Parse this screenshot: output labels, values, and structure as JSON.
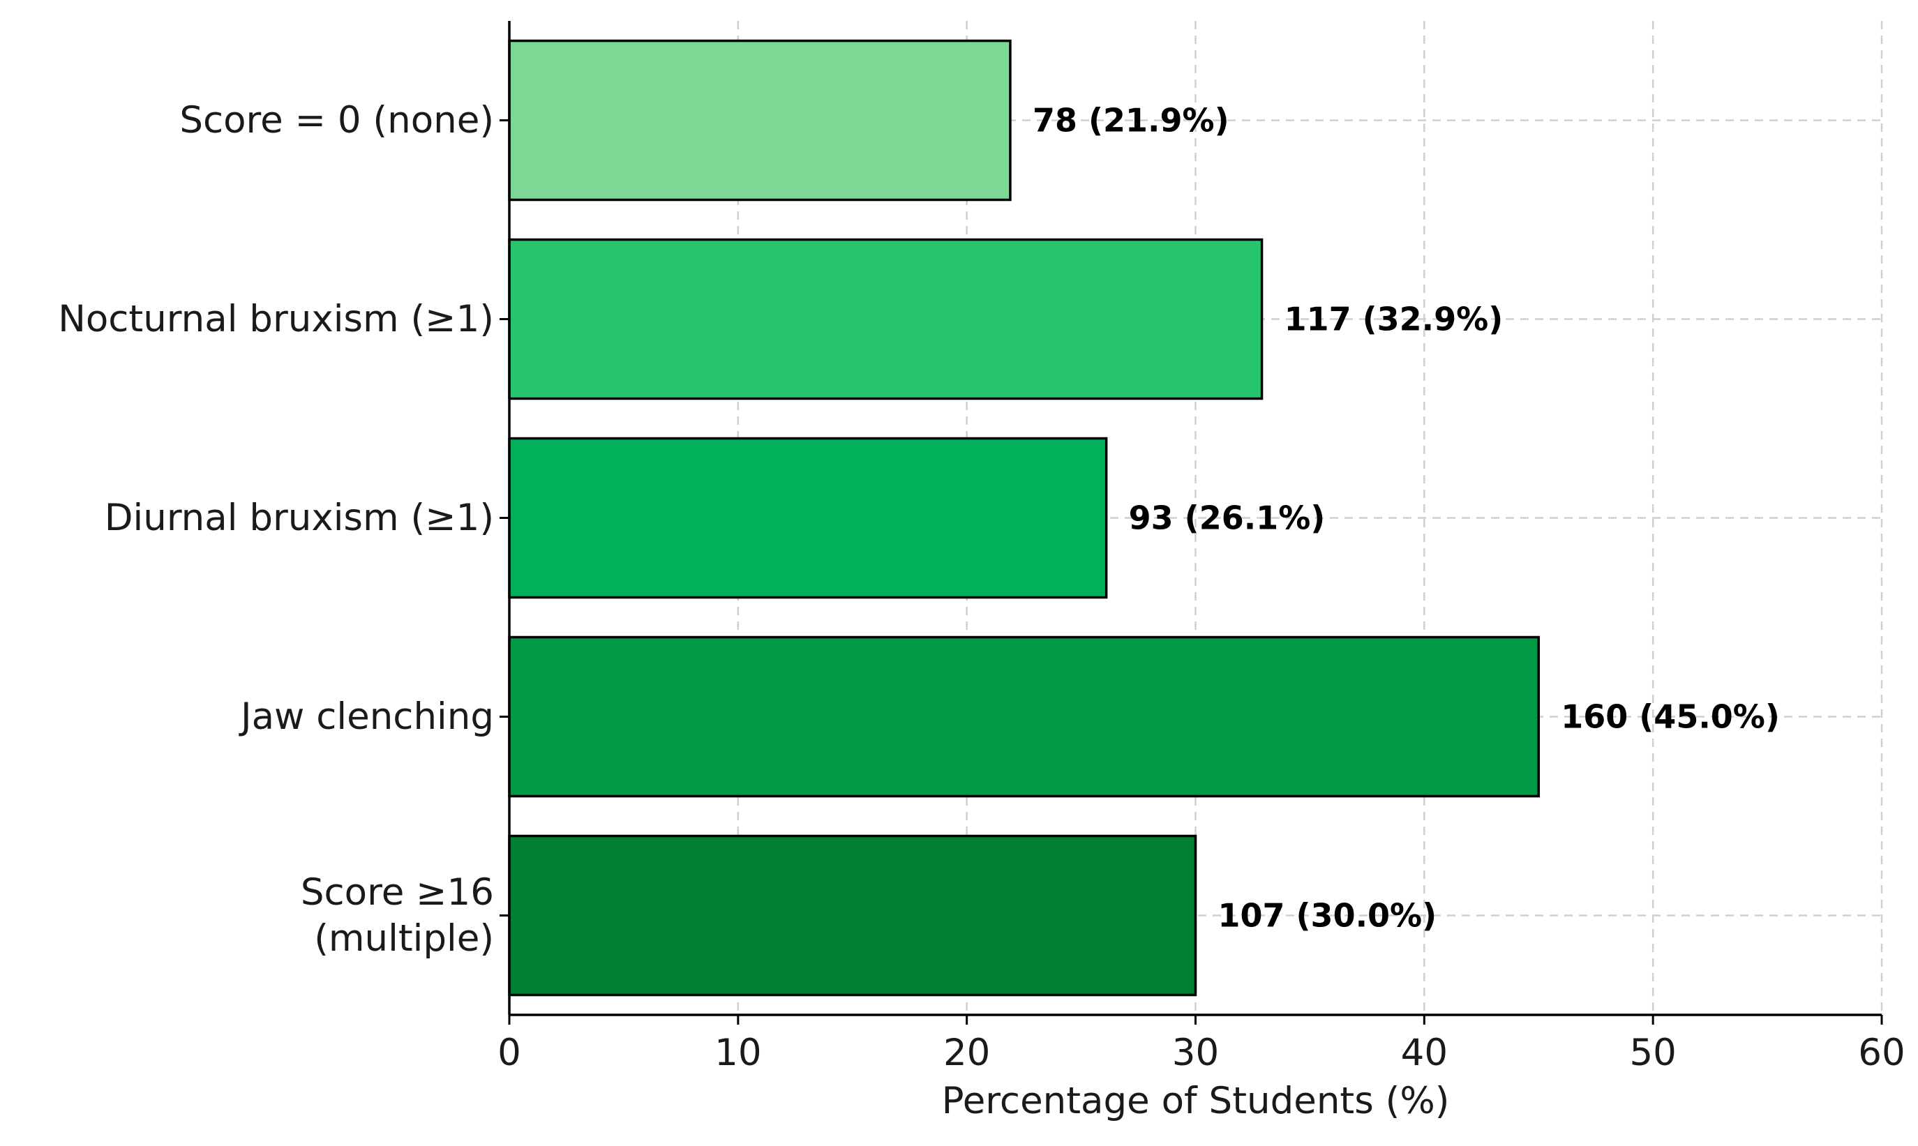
{
  "chart_data": {
    "type": "bar",
    "orientation": "horizontal",
    "categories": [
      [
        "Score = 0 (none)"
      ],
      [
        "Nocturnal bruxism (≥1)"
      ],
      [
        "Diurnal bruxism (≥1)"
      ],
      [
        "Jaw clenching"
      ],
      [
        "Score ≥16",
        "(multiple)"
      ]
    ],
    "values": [
      21.9,
      32.9,
      26.1,
      45.0,
      30.0
    ],
    "counts": [
      78,
      117,
      93,
      160,
      107
    ],
    "data_labels": [
      "78 (21.9%)",
      "117 (32.9%)",
      "93 (26.1%)",
      "160 (45.0%)",
      "107 (30.0%)"
    ],
    "colors": [
      "#7dd795",
      "#27c470",
      "#02b05a",
      "#019846",
      "#027f35"
    ],
    "xlabel": "Percentage of Students (%)",
    "ylabel": "",
    "title": "",
    "xlim": [
      0,
      60
    ],
    "xticks": [
      0,
      10,
      20,
      30,
      40,
      50,
      60
    ],
    "grid": true,
    "legend": "none"
  }
}
